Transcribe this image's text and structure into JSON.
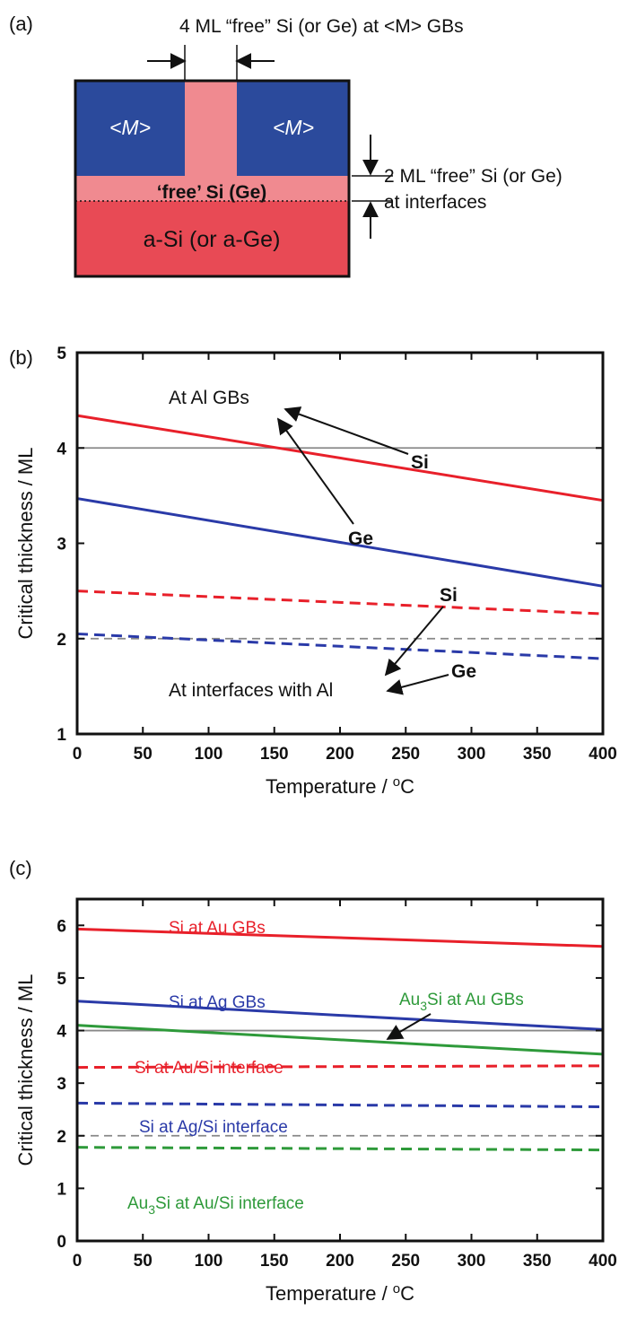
{
  "panel_a": {
    "label": "(a)",
    "top_note": "4 ML “free” Si (or Ge) at <M> GBs",
    "grain_label": "<M>",
    "free_layer_label": "‘free’ Si (Ge)",
    "substrate_label": "a-Si (or a-Ge)",
    "side_note_line1": "2 ML “free” Si (or Ge)",
    "side_note_line2": "at interfaces",
    "colors": {
      "grain": "#2b4a9c",
      "free": "#f08a90",
      "substrate": "#e84a55"
    }
  },
  "chart_data": [
    {
      "panel": "(b)",
      "type": "line",
      "xlabel": "Temperature / ",
      "xlabel_unit": "oC",
      "ylabel": "Critical thickness / ML",
      "xlim": [
        0,
        400
      ],
      "ylim": [
        1,
        5
      ],
      "xticks": [
        0,
        50,
        100,
        150,
        200,
        250,
        300,
        350,
        400
      ],
      "yticks": [
        1,
        2,
        3,
        4,
        5
      ],
      "reference_lines": [
        {
          "y": 4,
          "style": "solid",
          "color": "#888888"
        },
        {
          "y": 2,
          "style": "dashed",
          "color": "#888888"
        }
      ],
      "series": [
        {
          "color": "#e8202a",
          "style": "solid",
          "x": [
            0,
            400
          ],
          "y": [
            4.34,
            3.45
          ]
        },
        {
          "color": "#2a3aa8",
          "style": "solid",
          "x": [
            0,
            400
          ],
          "y": [
            3.47,
            2.55
          ]
        },
        {
          "color": "#e8202a",
          "style": "dashed",
          "x": [
            0,
            400
          ],
          "y": [
            2.5,
            2.26
          ]
        },
        {
          "color": "#2a3aa8",
          "style": "dashed",
          "x": [
            0,
            400
          ],
          "y": [
            2.05,
            1.79
          ]
        }
      ],
      "annotations": [
        {
          "text": "At Al GBs",
          "bold": false
        },
        {
          "text": "Si",
          "bold": true
        },
        {
          "text": "Ge",
          "bold": true
        },
        {
          "text": "Si",
          "bold": true
        },
        {
          "text": "Ge",
          "bold": true
        },
        {
          "text": "At interfaces with Al",
          "bold": false
        }
      ]
    },
    {
      "panel": "(c)",
      "type": "line",
      "xlabel": "Temperature / ",
      "xlabel_unit": "oC",
      "ylabel": "Critical thickness / ML",
      "xlim": [
        0,
        400
      ],
      "ylim": [
        0,
        6.5
      ],
      "xticks": [
        0,
        50,
        100,
        150,
        200,
        250,
        300,
        350,
        400
      ],
      "yticks": [
        0,
        1,
        2,
        3,
        4,
        5,
        6
      ],
      "reference_lines": [
        {
          "y": 4,
          "style": "solid",
          "color": "#888888"
        },
        {
          "y": 2,
          "style": "dashed",
          "color": "#888888"
        }
      ],
      "series": [
        {
          "color": "#e8202a",
          "style": "solid",
          "x": [
            0,
            400
          ],
          "y": [
            5.93,
            5.6
          ]
        },
        {
          "color": "#2a3aa8",
          "style": "solid",
          "x": [
            0,
            400
          ],
          "y": [
            4.56,
            4.02
          ]
        },
        {
          "color": "#2e9a3a",
          "style": "solid",
          "x": [
            0,
            400
          ],
          "y": [
            4.1,
            3.55
          ]
        },
        {
          "color": "#e8202a",
          "style": "dashed",
          "x": [
            0,
            400
          ],
          "y": [
            3.3,
            3.33
          ]
        },
        {
          "color": "#2a3aa8",
          "style": "dashed",
          "x": [
            0,
            400
          ],
          "y": [
            2.62,
            2.55
          ]
        },
        {
          "color": "#2e9a3a",
          "style": "dashed",
          "x": [
            0,
            400
          ],
          "y": [
            1.78,
            1.73
          ]
        }
      ],
      "annotations": [
        {
          "text": "Si at Au GBs",
          "color": "#e8202a"
        },
        {
          "text": "Si at Ag GBs",
          "color": "#2a3aa8"
        },
        {
          "text": "Au",
          "sub": "3",
          "rest": "Si at Au GBs",
          "color": "#2e9a3a"
        },
        {
          "text": "Si at Au/Si interface",
          "color": "#e8202a"
        },
        {
          "text": "Si at Ag/Si interface",
          "color": "#2a3aa8"
        },
        {
          "text": "Au",
          "sub": "3",
          "rest": "Si at Au/Si interface",
          "color": "#2e9a3a"
        }
      ]
    }
  ]
}
